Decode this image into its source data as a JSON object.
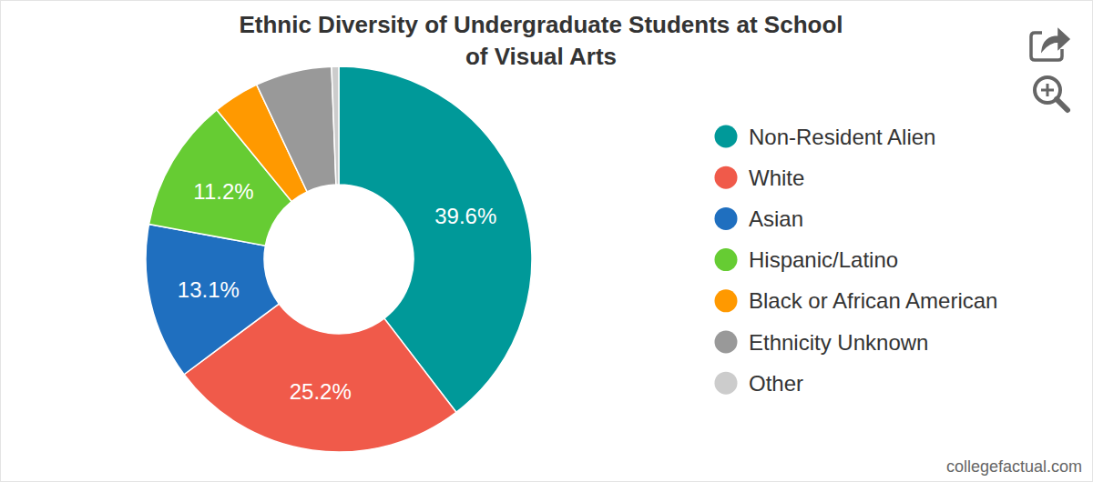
{
  "chart_data": {
    "type": "pie",
    "title": "Ethnic Diversity of Undergraduate Students at School of Visual Arts",
    "categories": [
      "Non-Resident Alien",
      "White",
      "Asian",
      "Hispanic/Latino",
      "Black or African American",
      "Ethnicity Unknown",
      "Other"
    ],
    "values": [
      39.6,
      25.2,
      13.1,
      11.2,
      3.9,
      6.4,
      0.6
    ],
    "value_labels": [
      "39.6%",
      "25.2%",
      "13.1%",
      "11.2%",
      null,
      null,
      null
    ],
    "colors": [
      "#009999",
      "#f05a4a",
      "#1f6fbf",
      "#66cc33",
      "#ff9900",
      "#999999",
      "#cccccc"
    ],
    "data_labels": true,
    "legend": "right",
    "source": "collegefactual.com"
  }
}
